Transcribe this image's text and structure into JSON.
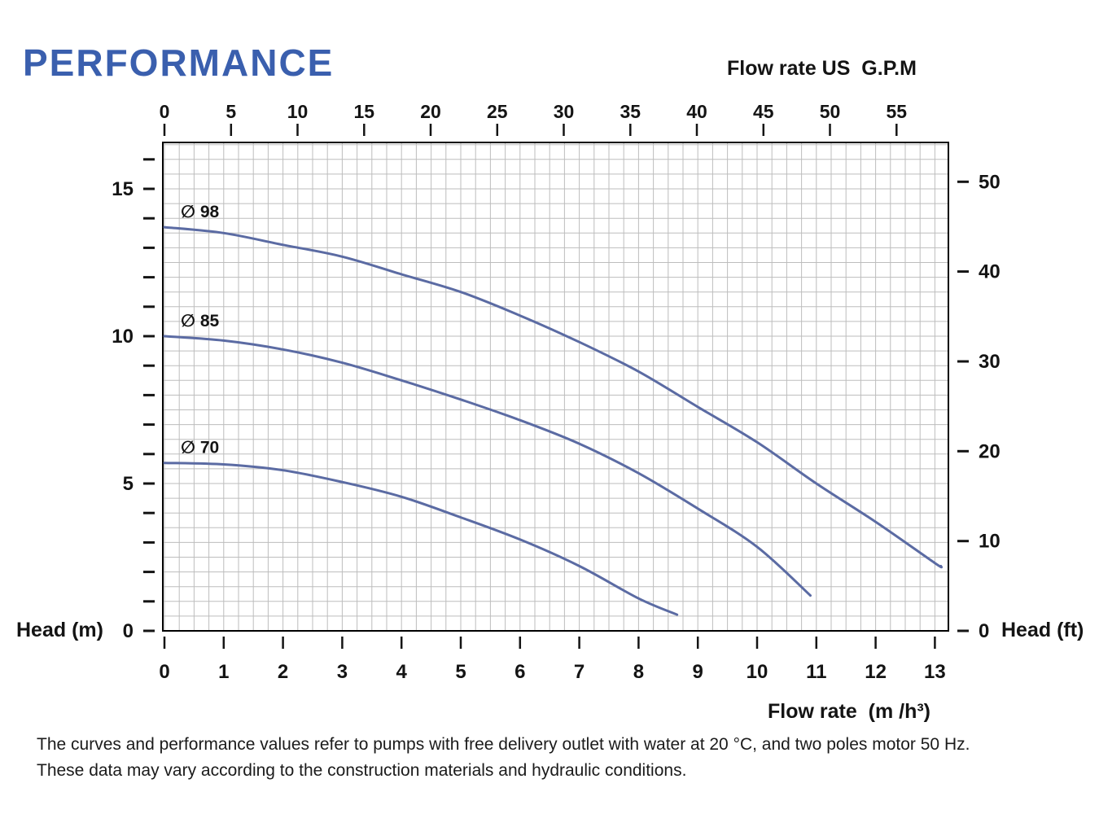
{
  "page": {
    "title": "PERFORMANCE",
    "footer": {
      "line1": "The curves and performance values refer to pumps with free delivery outlet with water at 20 °C, and two poles motor 50 Hz.",
      "line2": "These data may vary according to the construction materials and hydraulic conditions."
    }
  },
  "chart_data": {
    "type": "line",
    "title": "PERFORMANCE",
    "description": "Pump head vs flow rate performance curves for three impeller diameters",
    "grid": true,
    "axes": {
      "top": {
        "label": "Flow rate US  G.P.M",
        "min": 0,
        "max": 55,
        "ticks": [
          0,
          5,
          10,
          15,
          20,
          25,
          30,
          35,
          40,
          45,
          50,
          55
        ]
      },
      "bottom": {
        "label": "Flow rate  (m /h³)",
        "min": 0,
        "max": 13,
        "ticks": [
          0,
          1,
          2,
          3,
          4,
          5,
          6,
          7,
          8,
          9,
          10,
          11,
          12,
          13
        ]
      },
      "left": {
        "label": "Head (m)",
        "min": 0,
        "max": 16,
        "minor_step": 1,
        "major_ticks": [
          0,
          5,
          10,
          15
        ]
      },
      "right": {
        "label": "Head (ft)",
        "min": 0,
        "max": 50,
        "major_ticks": [
          0,
          10,
          20,
          30,
          40,
          50
        ]
      }
    },
    "series": [
      {
        "name": "∅ 98",
        "x": [
          0,
          1,
          2,
          3,
          4,
          5,
          6,
          7,
          8,
          9,
          10,
          11,
          12,
          13,
          13.1
        ],
        "head_m": [
          13.7,
          13.5,
          13.1,
          12.7,
          12.1,
          11.5,
          10.7,
          9.8,
          8.8,
          7.6,
          6.4,
          5.0,
          3.7,
          2.3,
          2.2
        ]
      },
      {
        "name": "∅ 85",
        "x": [
          0,
          1,
          2,
          3,
          4,
          5,
          6,
          7,
          8,
          9,
          10,
          10.9
        ],
        "head_m": [
          10.0,
          9.85,
          9.55,
          9.1,
          8.5,
          7.85,
          7.15,
          6.35,
          5.35,
          4.15,
          2.85,
          1.2
        ]
      },
      {
        "name": "∅ 70",
        "x": [
          0,
          1,
          2,
          3,
          4,
          5,
          6,
          7,
          8,
          8.65
        ],
        "head_m": [
          5.7,
          5.65,
          5.45,
          5.05,
          4.55,
          3.85,
          3.1,
          2.2,
          1.1,
          0.55
        ]
      }
    ],
    "colors": {
      "curve": "#5b6ba3",
      "grid": "#bdbdbd",
      "series_label": "#3d55a8",
      "title": "#3a5fae",
      "axis_text": "#141414"
    }
  }
}
